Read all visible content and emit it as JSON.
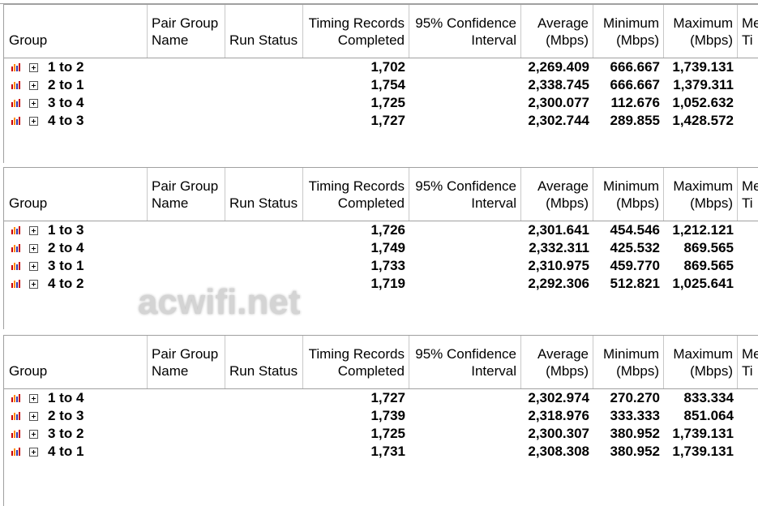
{
  "tables": [
    {
      "headers": [
        [
          "Group"
        ],
        [
          "Pair Group",
          "Name"
        ],
        [
          "Run Status"
        ],
        [
          "Timing Records",
          "Completed"
        ],
        [
          "95% Confidence",
          "Interval"
        ],
        [
          "Average",
          "(Mbps)"
        ],
        [
          "Minimum",
          "(Mbps)"
        ],
        [
          "Maximum",
          "(Mbps)"
        ],
        [
          "Me",
          "Ti"
        ]
      ],
      "rows": [
        [
          "1 to 2",
          "1,702",
          "2,269.409",
          "666.667",
          "1,739.131"
        ],
        [
          "2 to 1",
          "1,754",
          "2,338.745",
          "666.667",
          "1,379.311"
        ],
        [
          "3 to 4",
          "1,725",
          "2,300.077",
          "112.676",
          "1,052.632"
        ],
        [
          "4 to 3",
          "1,727",
          "2,302.744",
          "289.855",
          "1,428.572"
        ]
      ]
    },
    {
      "headers": [
        [
          "Group"
        ],
        [
          "Pair Group",
          "Name"
        ],
        [
          "Run Status"
        ],
        [
          "Timing Records",
          "Completed"
        ],
        [
          "95% Confidence",
          "Interval"
        ],
        [
          "Average",
          "(Mbps)"
        ],
        [
          "Minimum",
          "(Mbps)"
        ],
        [
          "Maximum",
          "(Mbps)"
        ],
        [
          "Me",
          "Ti"
        ]
      ],
      "rows": [
        [
          "1 to 3",
          "1,726",
          "2,301.641",
          "454.546",
          "1,212.121"
        ],
        [
          "2 to 4",
          "1,749",
          "2,332.311",
          "425.532",
          "869.565"
        ],
        [
          "3 to 1",
          "1,733",
          "2,310.975",
          "459.770",
          "869.565"
        ],
        [
          "4 to 2",
          "1,719",
          "2,292.306",
          "512.821",
          "1,025.641"
        ]
      ]
    },
    {
      "headers": [
        [
          "Group"
        ],
        [
          "Pair Group",
          "Name"
        ],
        [
          "Run Status"
        ],
        [
          "Timing Records",
          "Completed"
        ],
        [
          "95% Confidence",
          "Interval"
        ],
        [
          "Average",
          "(Mbps)"
        ],
        [
          "Minimum",
          "(Mbps)"
        ],
        [
          "Maximum",
          "(Mbps)"
        ],
        [
          "Me",
          "Ti"
        ]
      ],
      "rows": [
        [
          "1 to 4",
          "1,727",
          "2,302.974",
          "270.270",
          "833.334"
        ],
        [
          "2 to 3",
          "1,739",
          "2,318.976",
          "333.333",
          "851.064"
        ],
        [
          "3 to 2",
          "1,725",
          "2,300.307",
          "380.952",
          "1,739.131"
        ],
        [
          "4 to 1",
          "1,731",
          "2,308.308",
          "380.952",
          "1,739.131"
        ]
      ]
    }
  ],
  "watermark": "acwifi.net"
}
